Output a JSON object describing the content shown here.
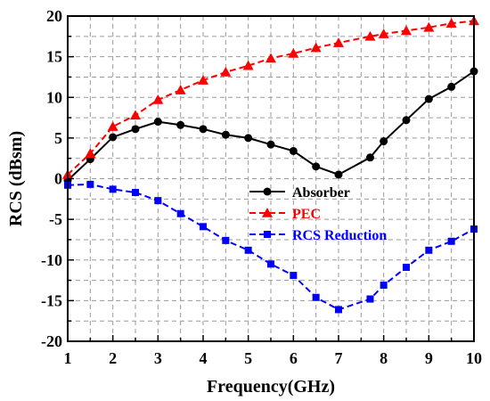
{
  "chart_data": {
    "type": "line",
    "title": "",
    "xlabel": "Frequency(GHz)",
    "ylabel": "RCS (dBsm)",
    "xlim": [
      1,
      10
    ],
    "ylim": [
      -20,
      20
    ],
    "xticks": [
      "1",
      "2",
      "3",
      "4",
      "5",
      "6",
      "7",
      "8",
      "9",
      "10"
    ],
    "yticks": [
      "-20",
      "-15",
      "-10",
      "-5",
      "0",
      "5",
      "10",
      "15",
      "20"
    ],
    "grid": true,
    "legend_position": "center-right",
    "series": [
      {
        "name": "Absorber",
        "color": "#000000",
        "marker": "circle",
        "line_style": "solid",
        "x": [
          1,
          1.5,
          2,
          2.5,
          3,
          3.5,
          4,
          4.5,
          5,
          5.5,
          6,
          6.5,
          7,
          7.7,
          8,
          8.5,
          9,
          9.5,
          10
        ],
        "y": [
          -0.2,
          2.4,
          5.1,
          6.1,
          7.0,
          6.6,
          6.1,
          5.4,
          5.0,
          4.2,
          3.4,
          1.5,
          0.5,
          2.6,
          4.6,
          7.2,
          9.8,
          11.3,
          13.2
        ]
      },
      {
        "name": "PEC",
        "color": "#ff0000",
        "marker": "triangle",
        "line_style": "dashed",
        "x": [
          1,
          1.5,
          2,
          2.5,
          3,
          3.5,
          4,
          4.5,
          5,
          5.5,
          6,
          6.5,
          7,
          7.7,
          8,
          8.5,
          9,
          9.5,
          10
        ],
        "y": [
          0.5,
          3.1,
          6.4,
          7.8,
          9.7,
          10.9,
          12.1,
          13.1,
          13.9,
          14.8,
          15.4,
          16.1,
          16.7,
          17.5,
          17.8,
          18.2,
          18.6,
          19.1,
          19.4
        ]
      },
      {
        "name": "RCS Reduction",
        "color": "#0000ff",
        "marker": "square",
        "line_style": "dashed",
        "x": [
          1,
          1.5,
          2,
          2.5,
          3,
          3.5,
          4,
          4.5,
          5,
          5.5,
          6,
          6.5,
          7,
          7.7,
          8,
          8.5,
          9,
          9.5,
          10
        ],
        "y": [
          -0.8,
          -0.7,
          -1.3,
          -1.7,
          -2.7,
          -4.3,
          -5.9,
          -7.6,
          -8.8,
          -10.5,
          -11.9,
          -14.6,
          -16.1,
          -14.8,
          -13.1,
          -10.9,
          -8.8,
          -7.7,
          -6.2
        ]
      }
    ]
  }
}
